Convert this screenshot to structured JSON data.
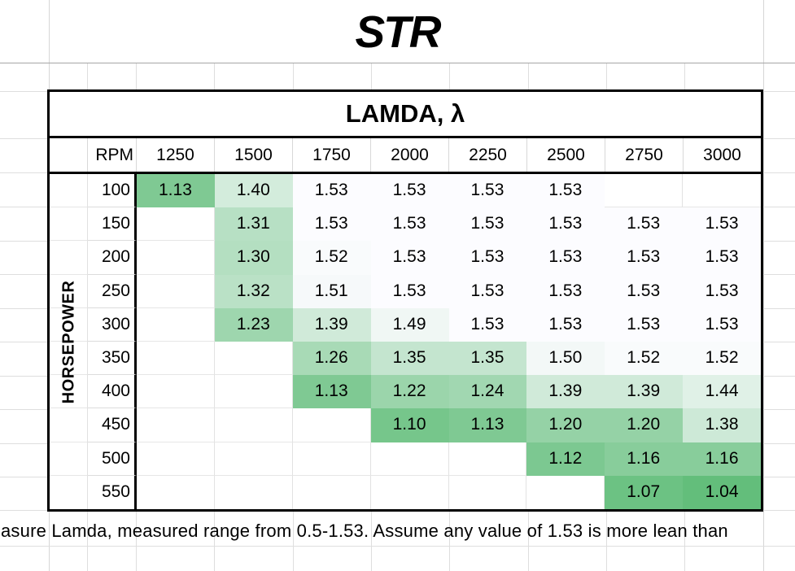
{
  "sheet": {
    "title": "STR",
    "note": "asure Lamda, measured range from 0.5-1.53. Assume any value of 1.53 is more lean than"
  },
  "table": {
    "header": "LAMDA, λ",
    "rpm_label": "RPM",
    "row_axis_label": "HORSEPOWER"
  },
  "chart_data": {
    "type": "heatmap",
    "title": "LAMDA, λ",
    "x_label": "RPM",
    "y_label": "HORSEPOWER",
    "columns": [
      "1250",
      "1500",
      "1750",
      "2000",
      "2250",
      "2500",
      "2750",
      "3000"
    ],
    "rows": [
      "100",
      "150",
      "200",
      "250",
      "300",
      "350",
      "400",
      "450",
      "500",
      "550"
    ],
    "values": [
      [
        1.13,
        1.4,
        1.53,
        1.53,
        1.53,
        1.53,
        null,
        null
      ],
      [
        null,
        1.31,
        1.53,
        1.53,
        1.53,
        1.53,
        1.53,
        1.53
      ],
      [
        null,
        1.3,
        1.52,
        1.53,
        1.53,
        1.53,
        1.53,
        1.53
      ],
      [
        null,
        1.32,
        1.51,
        1.53,
        1.53,
        1.53,
        1.53,
        1.53
      ],
      [
        null,
        1.23,
        1.39,
        1.49,
        1.53,
        1.53,
        1.53,
        1.53
      ],
      [
        null,
        null,
        1.26,
        1.35,
        1.35,
        1.5,
        1.52,
        1.52
      ],
      [
        null,
        null,
        1.13,
        1.22,
        1.24,
        1.39,
        1.39,
        1.44
      ],
      [
        null,
        null,
        null,
        1.1,
        1.13,
        1.2,
        1.2,
        1.38
      ],
      [
        null,
        null,
        null,
        null,
        null,
        1.12,
        1.16,
        1.16
      ],
      [
        null,
        null,
        null,
        null,
        null,
        null,
        1.07,
        1.04
      ]
    ],
    "value_decimals": 2,
    "color_scale": {
      "min_value": 1.04,
      "min_color": "#63BE7B",
      "max_value": 1.53,
      "max_color": "#FCFCFF"
    },
    "empty_cell_color": "#FFFFFF",
    "grid_on": true,
    "legend": "none"
  }
}
